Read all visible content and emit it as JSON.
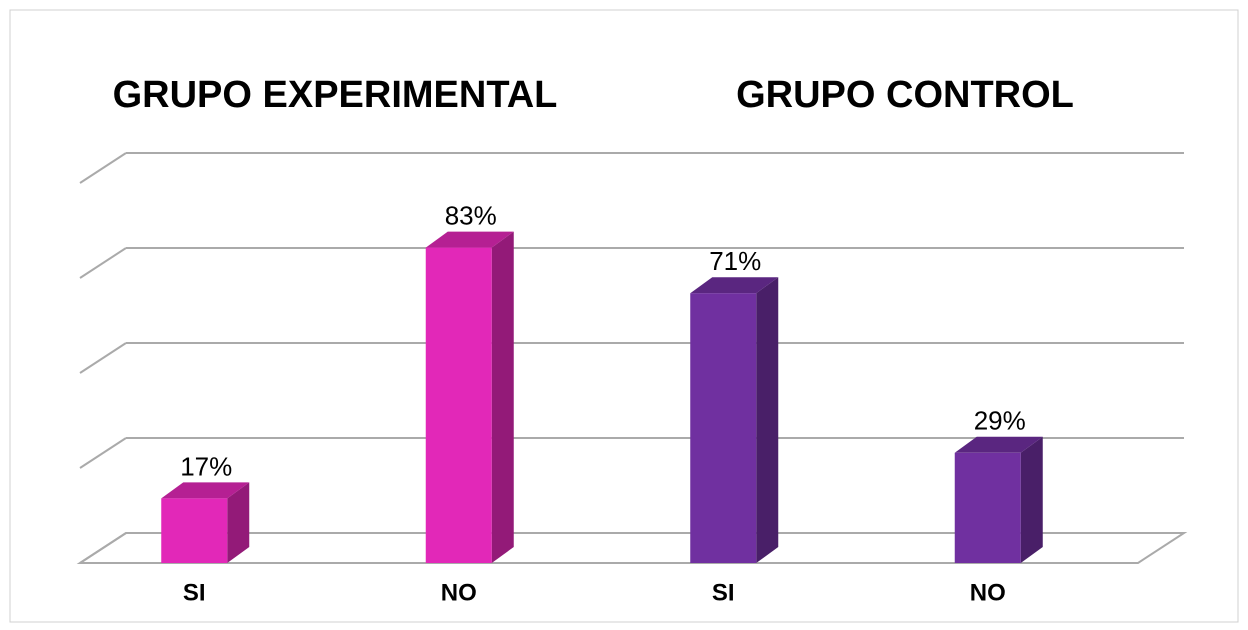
{
  "chart_data": {
    "type": "bar3d",
    "groups": [
      "GRUPO EXPERIMENTAL",
      "GRUPO CONTROL"
    ],
    "categories": [
      "SI",
      "NO",
      "SI",
      "NO"
    ],
    "values": [
      17,
      83,
      71,
      29
    ],
    "value_labels": [
      "17%",
      "83%",
      "71%",
      "29%"
    ],
    "colors": [
      "#e228b8",
      "#e228b8",
      "#7030a0",
      "#7030a0"
    ],
    "ylim": [
      0,
      100
    ],
    "yticks": [
      0,
      25,
      50,
      75,
      100
    ],
    "grid": true
  }
}
